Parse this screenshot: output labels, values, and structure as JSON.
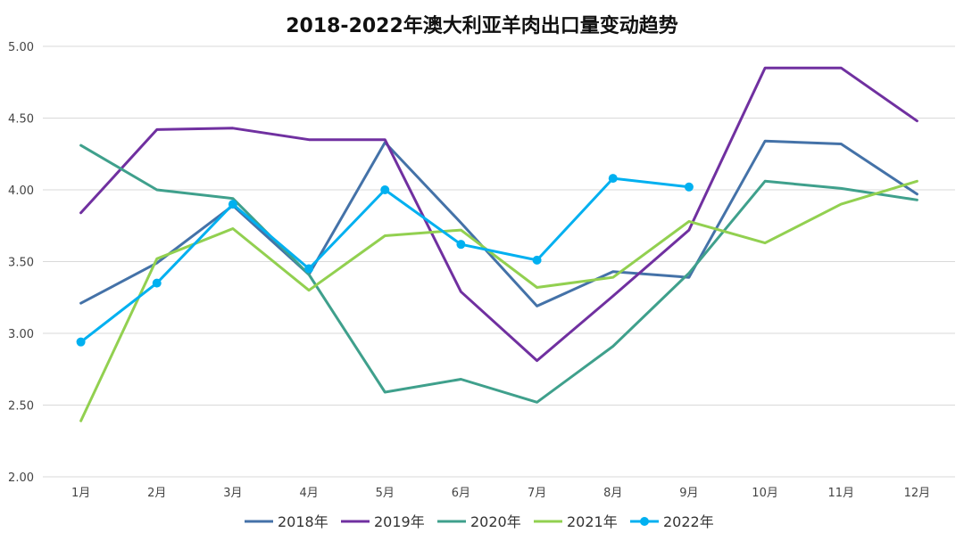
{
  "chart_data": {
    "type": "line",
    "title": "2018-2022年澳大利亚羊肉出口量变动趋势",
    "xlabel": "",
    "ylabel": "",
    "categories": [
      "1月",
      "2月",
      "3月",
      "4月",
      "5月",
      "6月",
      "7月",
      "8月",
      "9月",
      "10月",
      "11月",
      "12月"
    ],
    "ylim": [
      2.0,
      5.0
    ],
    "yticks": [
      "2.00",
      "2.50",
      "3.00",
      "3.50",
      "4.00",
      "4.50",
      "5.00"
    ],
    "grid": true,
    "legend_position": "bottom",
    "series": [
      {
        "name": "2018年",
        "color": "#4472a8",
        "markers": false,
        "values": [
          3.21,
          3.49,
          3.89,
          3.41,
          4.33,
          3.77,
          3.19,
          3.43,
          3.39,
          4.34,
          4.32,
          3.97
        ]
      },
      {
        "name": "2019年",
        "color": "#7030a0",
        "markers": false,
        "values": [
          3.84,
          4.42,
          4.43,
          4.35,
          4.35,
          3.29,
          2.81,
          3.26,
          3.72,
          4.85,
          4.85,
          4.48
        ]
      },
      {
        "name": "2020年",
        "color": "#3fa08c",
        "markers": false,
        "values": [
          4.31,
          4.0,
          3.94,
          3.41,
          2.59,
          2.68,
          2.52,
          2.91,
          3.42,
          4.06,
          4.01,
          3.93
        ]
      },
      {
        "name": "2021年",
        "color": "#92d050",
        "markers": false,
        "values": [
          2.39,
          3.52,
          3.73,
          3.3,
          3.68,
          3.72,
          3.32,
          3.39,
          3.78,
          3.63,
          3.9,
          4.06
        ]
      },
      {
        "name": "2022年",
        "color": "#00b0f0",
        "markers": true,
        "values": [
          2.94,
          3.35,
          3.9,
          3.45,
          4.0,
          3.62,
          3.51,
          4.08,
          4.02,
          null,
          null,
          null
        ]
      }
    ]
  }
}
